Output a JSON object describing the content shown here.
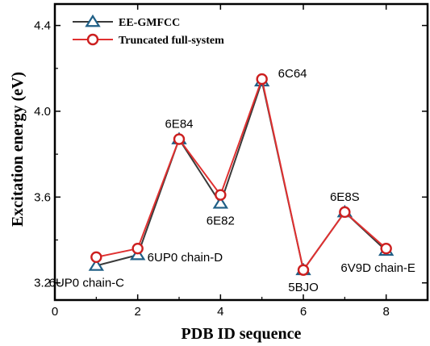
{
  "chart_data": {
    "type": "line",
    "xlabel": "PDB ID sequence",
    "ylabel": "Excitation energy (eV)",
    "xlim": [
      0,
      9
    ],
    "ylim": [
      3.12,
      4.5
    ],
    "xticks": [
      0,
      2,
      4,
      6,
      8
    ],
    "yticks": [
      3.2,
      3.6,
      4.0,
      4.4
    ],
    "ytick_labels": [
      "3.2",
      "3.6",
      "4.0",
      "4.4"
    ],
    "x": [
      1,
      2,
      3,
      4,
      5,
      6,
      7,
      8
    ],
    "series": [
      {
        "name": "EE-GMFCC",
        "marker": "triangle",
        "color": "#1f5f86",
        "line_color": "#3a3a3a",
        "values": [
          3.28,
          3.33,
          3.87,
          3.57,
          4.14,
          3.26,
          3.53,
          3.35
        ]
      },
      {
        "name": "Truncated full-system",
        "marker": "circle",
        "color": "#cc1f1f",
        "line_color": "#e03030",
        "values": [
          3.32,
          3.36,
          3.87,
          3.61,
          4.15,
          3.26,
          3.53,
          3.36
        ]
      }
    ],
    "point_labels": [
      {
        "x": 1,
        "y": 3.28,
        "text": "6UP0 chain-C",
        "anchor": "below"
      },
      {
        "x": 2,
        "y": 3.36,
        "text": "6UP0 chain-D",
        "anchor": "right"
      },
      {
        "x": 3,
        "y": 3.87,
        "text": "6E84",
        "anchor": "above"
      },
      {
        "x": 4,
        "y": 3.57,
        "text": "6E82",
        "anchor": "below"
      },
      {
        "x": 5,
        "y": 4.15,
        "text": "6C64",
        "anchor": "above-right"
      },
      {
        "x": 6,
        "y": 3.26,
        "text": "5BJO",
        "anchor": "below"
      },
      {
        "x": 7,
        "y": 3.53,
        "text": "6E8S",
        "anchor": "above"
      },
      {
        "x": 8,
        "y": 3.35,
        "text": "6V9D chain-E",
        "anchor": "below"
      }
    ],
    "legend_position": "top-left",
    "grid": false
  }
}
